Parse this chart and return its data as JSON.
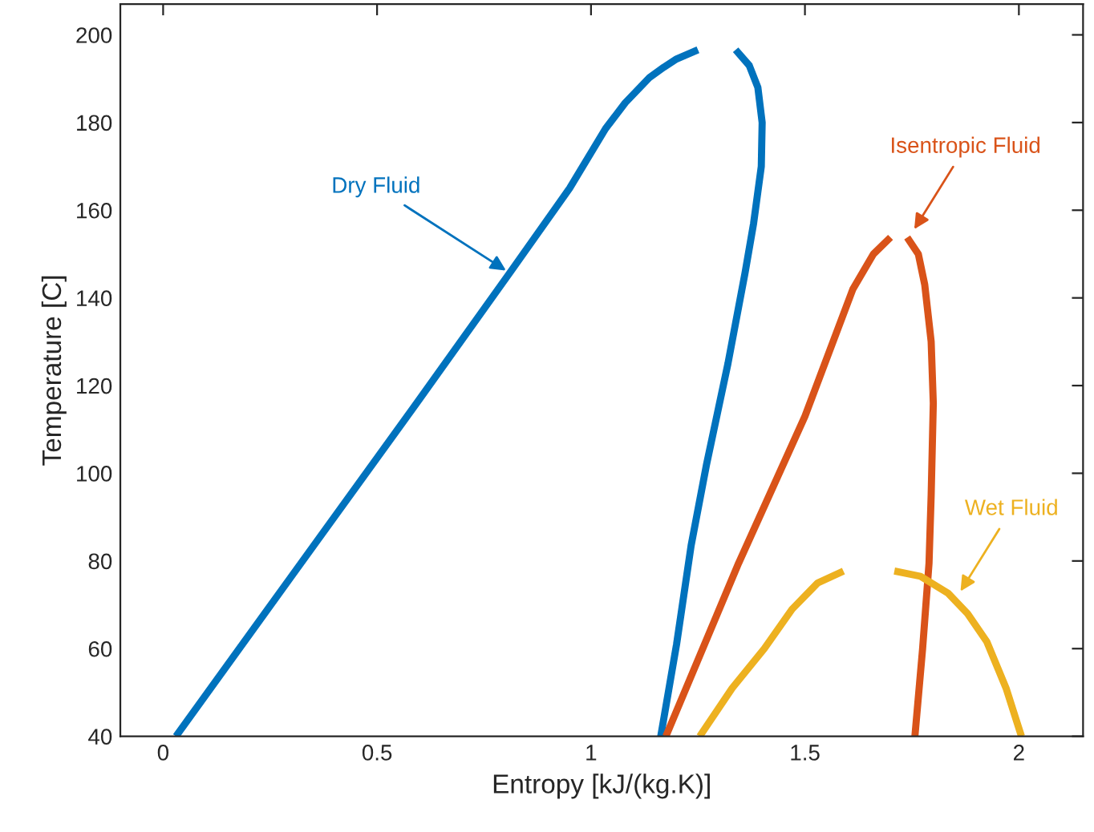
{
  "chart_data": {
    "type": "line",
    "xlabel": "Entropy [kJ/(kg.K)]",
    "ylabel": "Temperature [C]",
    "xlim": [
      -0.1,
      2.15
    ],
    "ylim": [
      40,
      207
    ],
    "xticks": [
      0,
      0.5,
      1,
      1.5,
      2
    ],
    "yticks": [
      40,
      60,
      80,
      100,
      120,
      140,
      160,
      180,
      200
    ],
    "grid": false,
    "marker": "none",
    "line_style": "solid",
    "series": [
      {
        "color": "#0072bd",
        "x": [
          0.03,
          0.3,
          0.6,
          0.81,
          0.95,
          1.034,
          1.08,
          1.137,
          1.17,
          1.2,
          1.25,
          null,
          1.338,
          1.37,
          1.39,
          1.4,
          1.398,
          1.38,
          1.36,
          1.32,
          1.27,
          1.234,
          1.2,
          1.163
        ],
        "values": [
          40,
          76.5,
          117,
          145.7,
          165,
          178.6,
          184.5,
          190.3,
          192.6,
          194.5,
          196.6,
          null,
          196.6,
          193,
          188,
          180,
          170,
          157,
          145.7,
          125,
          102,
          83.5,
          61,
          40
        ]
      },
      {
        "color": "#d95319",
        "x": [
          1.175,
          1.345,
          1.5,
          1.612,
          1.66,
          1.7,
          null,
          1.739,
          1.765,
          1.78,
          1.795,
          1.8,
          1.795,
          1.79,
          1.775,
          1.757
        ],
        "values": [
          40,
          79.5,
          113,
          142,
          150,
          153.8,
          null,
          153.8,
          150,
          143,
          130,
          116,
          95,
          79.5,
          60,
          40
        ]
      },
      {
        "color": "#edb120",
        "x": [
          1.254,
          1.33,
          1.405,
          1.47,
          1.53,
          1.59,
          null,
          1.709,
          1.77,
          1.835,
          1.88,
          1.925,
          1.97,
          2.006
        ],
        "values": [
          40,
          51,
          60,
          69,
          75,
          77.7,
          null,
          77.7,
          76.5,
          72.6,
          68,
          61.6,
          51,
          40
        ]
      }
    ],
    "annotations": [
      {
        "text": "Dry Fluid",
        "x": 0.81,
        "y": 145.7
      },
      {
        "text": "Isentropic Fluid",
        "x": 1.75,
        "y": 154.8
      },
      {
        "text": "Wet Fluid",
        "x": 1.858,
        "y": 72.2
      }
    ]
  }
}
